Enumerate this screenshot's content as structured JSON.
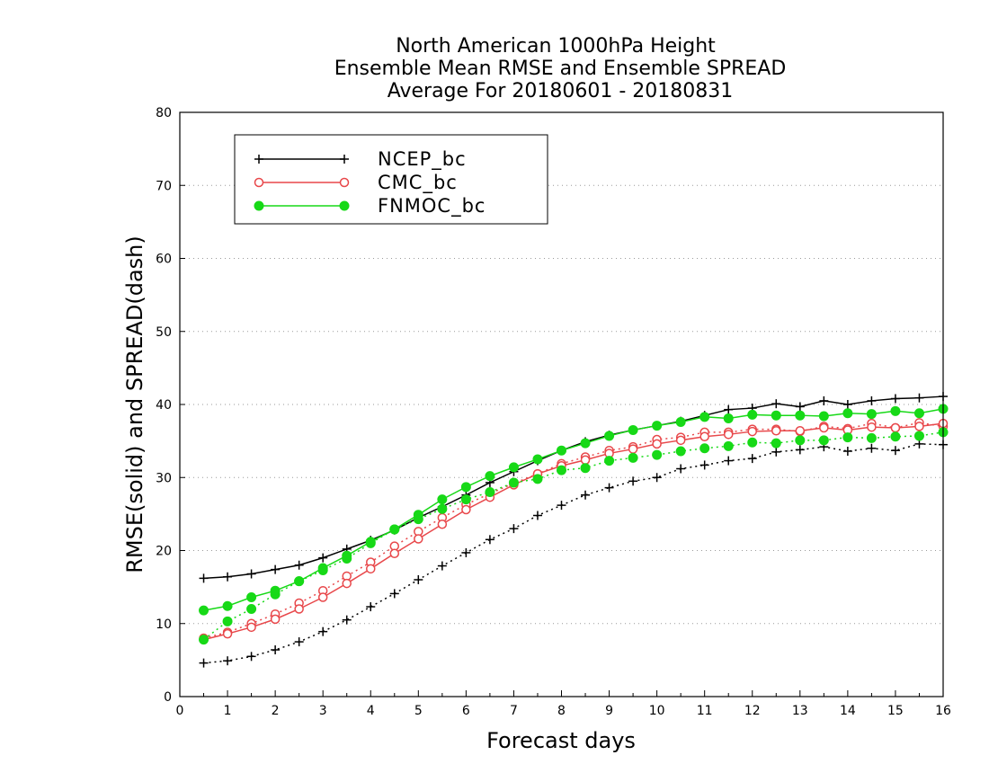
{
  "chart_data": {
    "type": "line",
    "title_lines": [
      "North American 1000hPa Height",
      "Ensemble Mean RMSE and Ensemble SPREAD",
      "Average For 20180601 - 20180831"
    ],
    "xlabel": "Forecast days",
    "ylabel": "RMSE(solid) and SPREAD(dash)",
    "xlim": [
      0,
      16
    ],
    "ylim": [
      0,
      80
    ],
    "x_ticks": [
      "0",
      "1",
      "2",
      "3",
      "4",
      "5",
      "6",
      "7",
      "8",
      "9",
      "10",
      "11",
      "12",
      "13",
      "14",
      "15",
      "16"
    ],
    "y_ticks": [
      "0",
      "10",
      "20",
      "30",
      "40",
      "50",
      "60",
      "70",
      "80"
    ],
    "grid": "dotted horizontal",
    "legend_position": "top-left",
    "x": [
      0.5,
      1,
      1.5,
      2,
      2.5,
      3,
      3.5,
      4,
      4.5,
      5,
      5.5,
      6,
      6.5,
      7,
      7.5,
      8,
      8.5,
      9,
      9.5,
      10,
      10.5,
      11,
      11.5,
      12,
      12.5,
      13,
      13.5,
      14,
      14.5,
      15,
      15.5,
      16
    ],
    "series": [
      {
        "name": "NCEP_bc",
        "color": "#000000",
        "marker": "plus",
        "rmse": [
          16.2,
          16.4,
          16.8,
          17.4,
          18.0,
          19.0,
          20.2,
          21.4,
          22.8,
          24.5,
          26.0,
          27.6,
          29.3,
          30.8,
          32.3,
          33.7,
          34.9,
          35.8,
          36.5,
          37.1,
          37.7,
          38.5,
          39.3,
          39.5,
          40.1,
          39.7,
          40.5,
          40.0,
          40.5,
          40.8,
          40.9,
          41.1
        ],
        "spread": [
          4.6,
          4.9,
          5.5,
          6.4,
          7.5,
          8.9,
          10.5,
          12.3,
          14.1,
          16.0,
          17.9,
          19.7,
          21.5,
          23.0,
          24.8,
          26.2,
          27.6,
          28.6,
          29.5,
          30.0,
          31.2,
          31.7,
          32.3,
          32.6,
          33.5,
          33.8,
          34.2,
          33.6,
          34.0,
          33.7,
          34.6,
          34.5
        ]
      },
      {
        "name": "CMC_bc",
        "color": "#e8474a",
        "marker": "open-circle",
        "rmse": [
          7.8,
          8.6,
          9.5,
          10.6,
          12.0,
          13.6,
          15.5,
          17.5,
          19.6,
          21.6,
          23.6,
          25.6,
          27.3,
          29.0,
          30.5,
          31.6,
          32.4,
          33.3,
          33.9,
          34.6,
          35.1,
          35.6,
          35.9,
          36.3,
          36.4,
          36.4,
          36.8,
          36.5,
          36.9,
          36.8,
          37.0,
          37.4
        ],
        "spread": [
          8.0,
          8.8,
          10.0,
          11.3,
          12.8,
          14.5,
          16.5,
          18.4,
          20.6,
          22.6,
          24.5,
          26.3,
          27.8,
          29.2,
          30.5,
          31.9,
          32.8,
          33.7,
          34.2,
          35.2,
          35.5,
          36.2,
          36.2,
          36.6,
          36.6,
          36.3,
          37.0,
          36.7,
          37.4,
          36.8,
          37.5,
          37.0
        ]
      },
      {
        "name": "FNMOC_bc",
        "color": "#17d917",
        "marker": "filled-circle",
        "rmse": [
          11.8,
          12.4,
          13.6,
          14.5,
          15.8,
          17.6,
          19.3,
          21.2,
          22.9,
          24.9,
          27.0,
          28.7,
          30.2,
          31.4,
          32.5,
          33.7,
          34.7,
          35.7,
          36.5,
          37.1,
          37.6,
          38.3,
          38.1,
          38.6,
          38.5,
          38.5,
          38.4,
          38.8,
          38.7,
          39.1,
          38.8,
          39.4
        ],
        "spread": [
          7.8,
          10.3,
          12.0,
          14.0,
          15.8,
          17.3,
          18.9,
          21.0,
          22.9,
          24.3,
          25.7,
          27.0,
          28.0,
          29.3,
          29.8,
          31.0,
          31.3,
          32.3,
          32.7,
          33.1,
          33.6,
          34.0,
          34.3,
          34.8,
          34.7,
          35.1,
          35.1,
          35.5,
          35.4,
          35.6,
          35.7,
          36.2
        ]
      }
    ]
  }
}
